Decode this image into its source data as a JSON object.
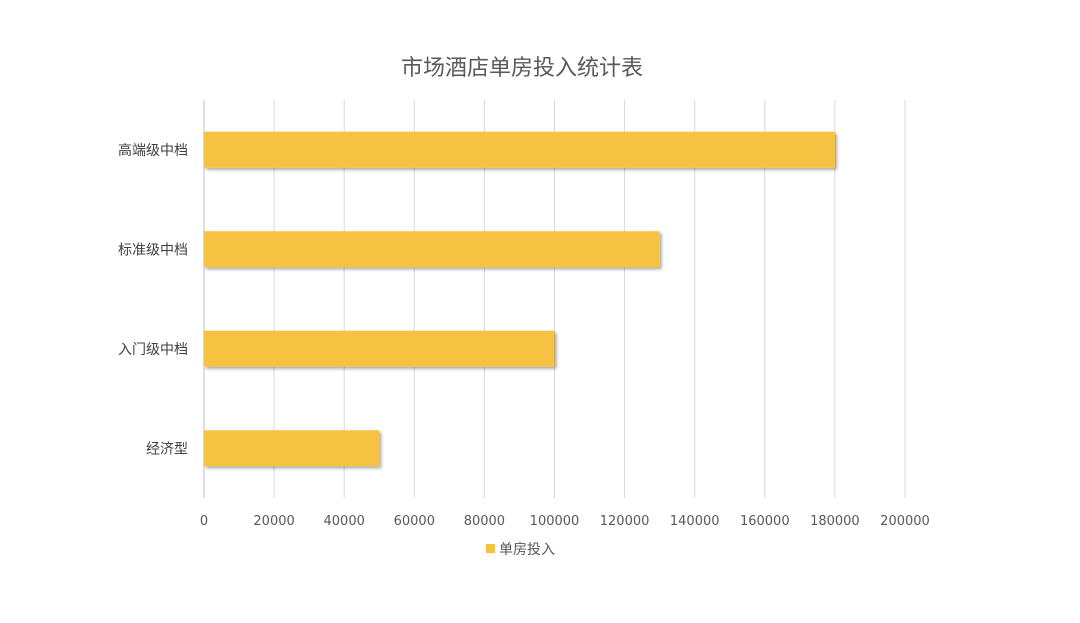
{
  "chart_data": {
    "type": "bar",
    "orientation": "horizontal",
    "title": "市场酒店单房投入统计表",
    "categories": [
      "高端级中档",
      "标准级中档",
      "入门级中档",
      "经济型"
    ],
    "series": [
      {
        "name": "单房投入",
        "values": [
          180000,
          130000,
          100000,
          50000
        ],
        "color": "#F5C242"
      }
    ],
    "xlim": [
      0,
      200000
    ],
    "x_ticks": [
      0,
      20000,
      40000,
      60000,
      80000,
      100000,
      120000,
      140000,
      160000,
      180000,
      200000
    ],
    "grid": "vertical",
    "legend": "bottom"
  }
}
